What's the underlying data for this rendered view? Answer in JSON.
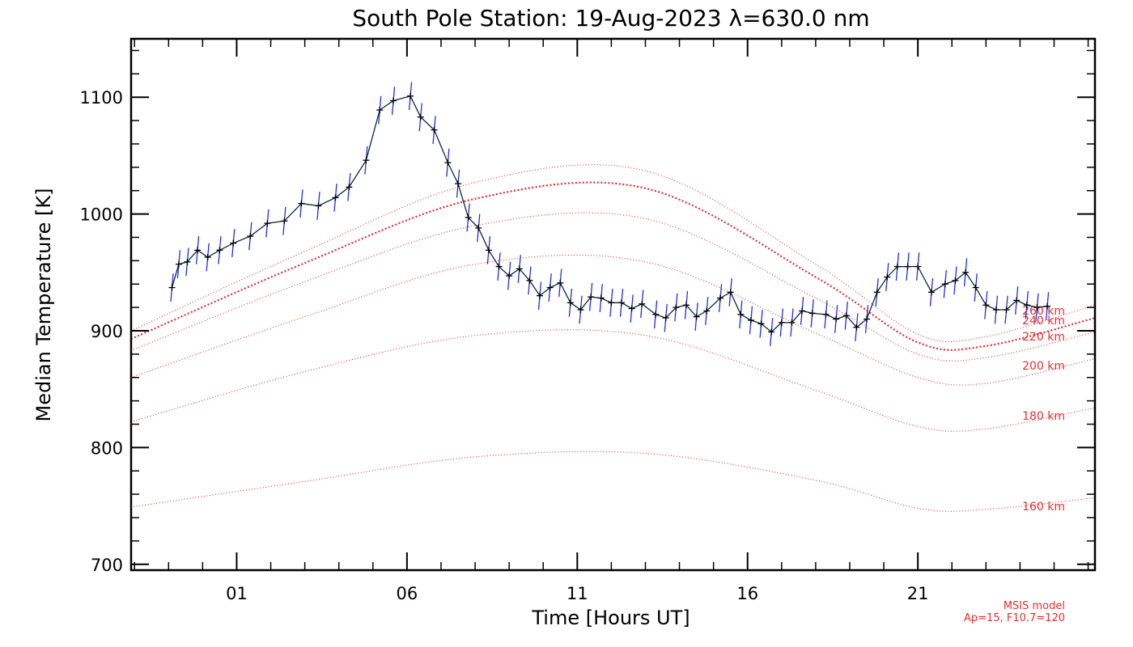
{
  "chart_data": {
    "type": "line",
    "title": "South Pole Station: 19-Aug-2023 λ=630.0 nm",
    "xlabel": "Time [Hours UT]",
    "ylabel": "Median Temperature [K]",
    "xlim": [
      -2.1,
      26.2
    ],
    "ylim": [
      695,
      1150
    ],
    "x_ticks": [
      1,
      6,
      11,
      16,
      21
    ],
    "x_tick_labels": [
      "01",
      "06",
      "11",
      "16",
      "21"
    ],
    "y_ticks": [
      700,
      800,
      900,
      1000,
      1100
    ],
    "y_tick_labels": [
      "700",
      "800",
      "900",
      "1000",
      "1100"
    ],
    "grid": false,
    "annotation": {
      "line1": "MSIS model",
      "line2": "Ap=15, F10.7=120"
    },
    "colors": {
      "measurement_line": "#0a2a3a",
      "error_bar": "#1f2fe0",
      "model": "#e03030"
    },
    "series": [
      {
        "role": "measurement",
        "x": [
          -0.9,
          -0.7,
          -0.45,
          -0.15,
          0.15,
          0.5,
          0.9,
          1.4,
          1.9,
          2.4,
          2.9,
          3.4,
          3.9,
          4.3,
          4.8,
          5.2,
          5.6,
          6.1,
          6.4,
          6.8,
          7.2,
          7.5,
          7.8,
          8.1,
          8.4,
          8.7,
          9.0,
          9.3,
          9.6,
          9.9,
          10.2,
          10.5,
          10.8,
          11.1,
          11.4,
          11.7,
          12.0,
          12.3,
          12.6,
          12.9,
          13.3,
          13.6,
          13.9,
          14.2,
          14.5,
          14.8,
          15.2,
          15.5,
          15.8,
          16.1,
          16.4,
          16.7,
          17.0,
          17.3,
          17.6,
          17.9,
          18.3,
          18.6,
          18.9,
          19.2,
          19.5,
          19.8,
          20.1,
          20.4,
          20.7,
          21.0,
          21.4,
          21.8,
          22.1,
          22.4,
          22.7,
          23.0,
          23.3,
          23.6,
          23.9,
          24.2,
          24.5,
          24.8
        ],
        "y": [
          937,
          957,
          959,
          969,
          963,
          969,
          975,
          981,
          992,
          994,
          1009,
          1007,
          1014,
          1023,
          1046,
          1089,
          1097,
          1101,
          1083,
          1072,
          1044,
          1026,
          997,
          988,
          969,
          955,
          947,
          953,
          943,
          930,
          937,
          941,
          924,
          918,
          929,
          928,
          924,
          924,
          919,
          923,
          914,
          911,
          920,
          922,
          912,
          917,
          928,
          933,
          914,
          909,
          906,
          899,
          907,
          907,
          917,
          915,
          914,
          910,
          913,
          903,
          910,
          933,
          946,
          955,
          955,
          955,
          933,
          940,
          943,
          950,
          937,
          922,
          918,
          918,
          926,
          922,
          920,
          921
        ],
        "yerr": 12
      },
      {
        "name": "160 km",
        "x": [
          -2.1,
          3,
          8,
          13,
          18,
          21,
          23,
          26.2
        ],
        "y": [
          749,
          771,
          792,
          795,
          772,
          748,
          747,
          757
        ]
      },
      {
        "name": "180 km",
        "x": [
          -2.1,
          3,
          8,
          13,
          18,
          21,
          23,
          26.2
        ],
        "y": [
          822,
          865,
          896,
          896,
          849,
          818,
          816,
          834
        ]
      },
      {
        "name": "200 km",
        "x": [
          -2.1,
          3,
          8,
          13,
          18,
          21,
          23,
          26.2
        ],
        "y": [
          860,
          912,
          957,
          959,
          898,
          860,
          855,
          876
        ]
      },
      {
        "name": "220 km",
        "x": [
          -2.1,
          3,
          8,
          13,
          18,
          21,
          23,
          26.2
        ],
        "y": [
          883,
          942,
          990,
          996,
          928,
          880,
          877,
          899
        ]
      },
      {
        "name": "240 km",
        "x": [
          -2.1,
          3,
          8,
          13,
          18,
          21,
          23,
          26.2
        ],
        "y": [
          893,
          958,
          1013,
          1022,
          946,
          890,
          887,
          911
        ]
      },
      {
        "name": "260 km",
        "x": [
          -2.1,
          3,
          8,
          13,
          18,
          21,
          23,
          26.2
        ],
        "y": [
          900,
          968,
          1027,
          1037,
          957,
          897,
          895,
          922
        ]
      }
    ]
  }
}
